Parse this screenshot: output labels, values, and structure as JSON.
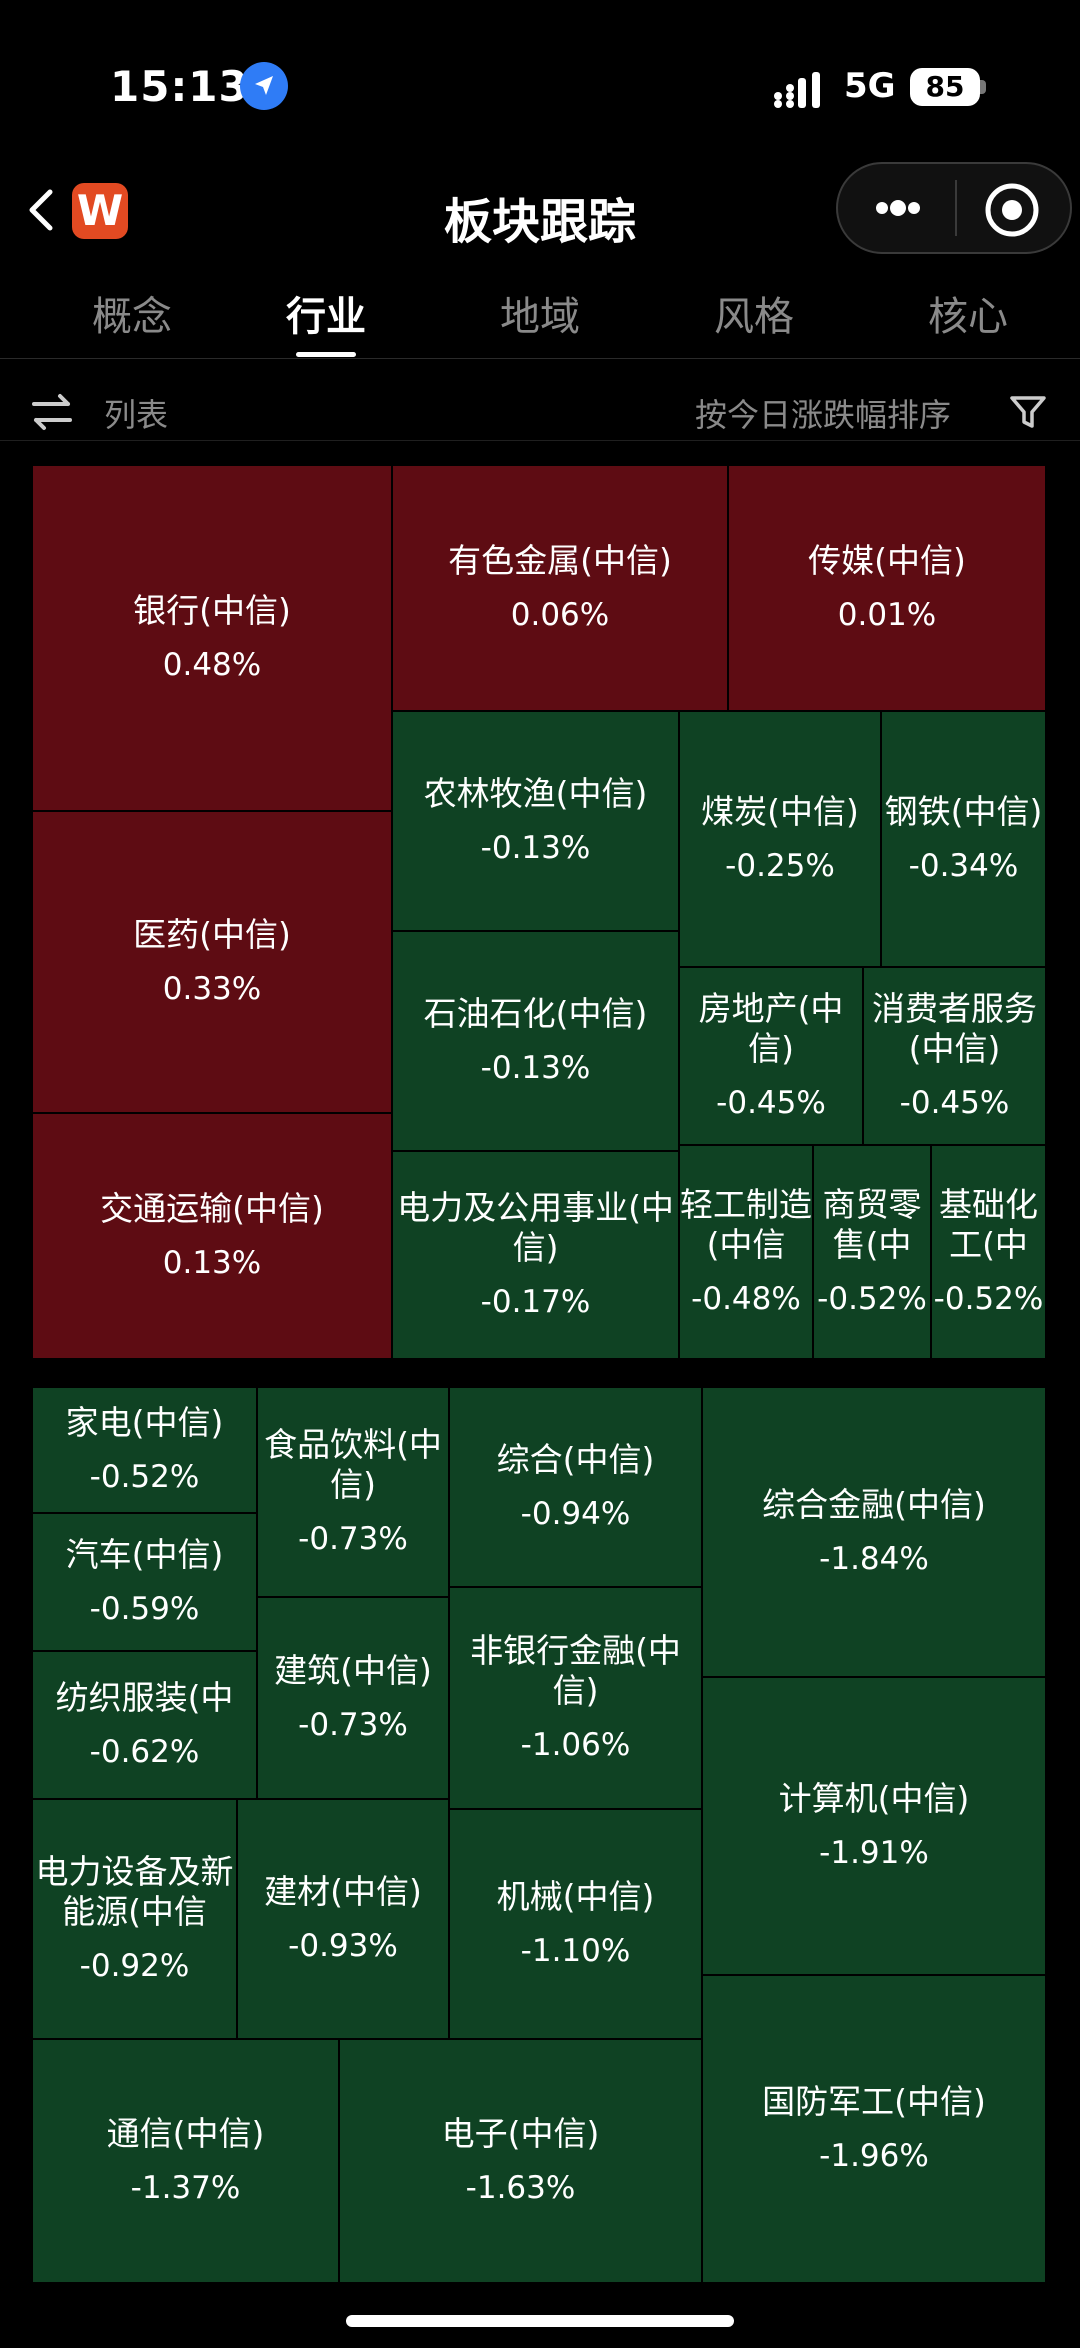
{
  "status_bar": {
    "time": "15:13",
    "network": "5G",
    "battery": "85"
  },
  "nav": {
    "title": "板块跟踪",
    "logo": "W"
  },
  "tabs": [
    {
      "label": "概念"
    },
    {
      "label": "行业"
    },
    {
      "label": "地域"
    },
    {
      "label": "风格"
    },
    {
      "label": "核心"
    }
  ],
  "toolbar": {
    "list_label": "列表",
    "sort_label": "按今日涨跌幅排序"
  },
  "colors": {
    "up": "#5e0c13",
    "down": "#0f4223",
    "background": "#000000"
  },
  "icons": [
    "location-arrow-icon",
    "signal-icon",
    "battery-icon",
    "back-arrow-icon",
    "more-dots-icon",
    "target-icon",
    "swap-icon",
    "filter-icon"
  ],
  "sectors": [
    {
      "name": "银行(中信)",
      "change": "0.48%"
    },
    {
      "name": "有色金属(中信)",
      "change": "0.06%"
    },
    {
      "name": "传媒(中信)",
      "change": "0.01%"
    },
    {
      "name": "医药(中信)",
      "change": "0.33%"
    },
    {
      "name": "交通运输(中信)",
      "change": "0.13%"
    },
    {
      "name": "农林牧渔(中信)",
      "change": "-0.13%"
    },
    {
      "name": "煤炭(中信)",
      "change": "-0.25%"
    },
    {
      "name": "钢铁(中信)",
      "change": "-0.34%"
    },
    {
      "name": "石油石化(中信)",
      "change": "-0.13%"
    },
    {
      "name": "房地产(中信)",
      "change": "-0.45%"
    },
    {
      "name": "消费者服务(中信)",
      "change": "-0.45%"
    },
    {
      "name": "电力及公用事业(中信)",
      "change": "-0.17%"
    },
    {
      "name": "轻工制造(中信",
      "change": "-0.48%"
    },
    {
      "name": "商贸零售(中",
      "change": "-0.52%"
    },
    {
      "name": "基础化工(中",
      "change": "-0.52%"
    },
    {
      "name": "家电(中信)",
      "change": "-0.52%"
    },
    {
      "name": "食品饮料(中信)",
      "change": "-0.73%"
    },
    {
      "name": "综合(中信)",
      "change": "-0.94%"
    },
    {
      "name": "综合金融(中信)",
      "change": "-1.84%"
    },
    {
      "name": "汽车(中信)",
      "change": "-0.59%"
    },
    {
      "name": "纺织服装(中",
      "change": "-0.62%"
    },
    {
      "name": "建筑(中信)",
      "change": "-0.73%"
    },
    {
      "name": "非银行金融(中信)",
      "change": "-1.06%"
    },
    {
      "name": "计算机(中信)",
      "change": "-1.91%"
    },
    {
      "name": "电力设备及新能源(中信",
      "change": "-0.92%"
    },
    {
      "name": "建材(中信)",
      "change": "-0.93%"
    },
    {
      "name": "机械(中信)",
      "change": "-1.10%"
    },
    {
      "name": "通信(中信)",
      "change": "-1.37%"
    },
    {
      "name": "电子(中信)",
      "change": "-1.63%"
    },
    {
      "name": "国防军工(中信)",
      "change": "-1.96%"
    }
  ]
}
